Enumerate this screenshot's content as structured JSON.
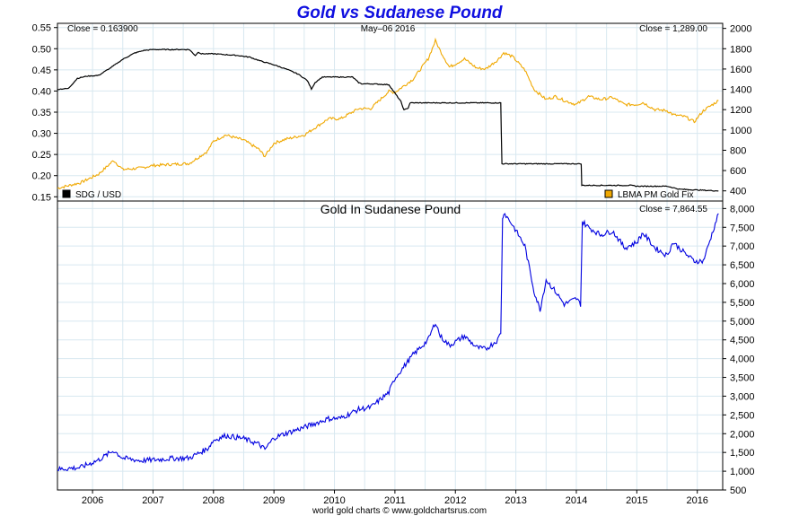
{
  "chart_data": [
    {
      "type": "line",
      "title": "Gold vs Sudanese Pound",
      "date_label": "May–06  2016",
      "left_close_label": "Close = 0.163900",
      "right_close_label": "Close = 1,289.00",
      "legend": [
        {
          "name": "SDG / USD",
          "color": "#000000",
          "position": "bottom-left"
        },
        {
          "name": "LBMA PM Gold Fix",
          "color": "#f0a800",
          "position": "bottom-right"
        }
      ],
      "y_left": {
        "min": 0.14,
        "max": 0.56,
        "ticks": [
          "0.55",
          "0.50",
          "0.45",
          "0.40",
          "0.35",
          "0.30",
          "0.25",
          "0.20",
          "0.15"
        ]
      },
      "y_right": {
        "min": 300,
        "max": 2050,
        "ticks": [
          "2000",
          "1800",
          "1600",
          "1400",
          "1200",
          "1000",
          "800",
          "600",
          "400"
        ]
      },
      "grid": true,
      "series": [
        {
          "name": "SDG / USD",
          "axis": "left",
          "color": "#000000",
          "x": [
            2005.42,
            2005.6,
            2005.75,
            2005.9,
            2006.1,
            2006.3,
            2006.5,
            2006.7,
            2006.85,
            2007.0,
            2007.3,
            2007.6,
            2007.7,
            2007.75,
            2007.8,
            2008.0,
            2008.2,
            2008.4,
            2008.6,
            2008.8,
            2009.0,
            2009.2,
            2009.4,
            2009.55,
            2009.62,
            2009.68,
            2009.8,
            2010.0,
            2010.3,
            2010.4,
            2010.45,
            2010.6,
            2010.9,
            2011.0,
            2011.1,
            2011.15,
            2011.22,
            2011.25,
            2011.6,
            2012.0,
            2012.4,
            2012.75,
            2012.77,
            2013.0,
            2013.5,
            2014.0,
            2014.08,
            2014.09,
            2014.5,
            2014.9,
            2015.0,
            2015.5,
            2015.7,
            2016.0,
            2016.35
          ],
          "values": [
            0.404,
            0.406,
            0.43,
            0.435,
            0.437,
            0.455,
            0.475,
            0.49,
            0.496,
            0.498,
            0.498,
            0.498,
            0.484,
            0.492,
            0.488,
            0.488,
            0.486,
            0.484,
            0.48,
            0.47,
            0.462,
            0.452,
            0.44,
            0.425,
            0.405,
            0.42,
            0.433,
            0.433,
            0.433,
            0.42,
            0.417,
            0.417,
            0.415,
            0.395,
            0.375,
            0.355,
            0.36,
            0.372,
            0.372,
            0.372,
            0.372,
            0.372,
            0.228,
            0.228,
            0.228,
            0.228,
            0.228,
            0.177,
            0.177,
            0.177,
            0.175,
            0.175,
            0.168,
            0.166,
            0.1639
          ]
        },
        {
          "name": "LBMA PM Gold Fix",
          "axis": "right",
          "color": "#f0a800",
          "x": [
            2005.42,
            2005.8,
            2006.1,
            2006.35,
            2006.5,
            2006.8,
            2007.0,
            2007.3,
            2007.6,
            2007.9,
            2008.0,
            2008.2,
            2008.5,
            2008.75,
            2008.85,
            2009.0,
            2009.2,
            2009.5,
            2009.9,
            2010.1,
            2010.4,
            2010.6,
            2010.9,
            2011.0,
            2011.3,
            2011.55,
            2011.67,
            2011.75,
            2011.9,
            2012.0,
            2012.15,
            2012.35,
            2012.5,
            2012.7,
            2012.8,
            2012.95,
            2013.15,
            2013.3,
            2013.5,
            2013.65,
            2013.8,
            2014.0,
            2014.2,
            2014.4,
            2014.6,
            2014.8,
            2015.0,
            2015.1,
            2015.3,
            2015.5,
            2015.6,
            2015.8,
            2015.95,
            2016.1,
            2016.35
          ],
          "values": [
            426,
            480,
            565,
            700,
            610,
            625,
            650,
            660,
            670,
            790,
            890,
            950,
            900,
            810,
            740,
            870,
            910,
            950,
            1110,
            1110,
            1210,
            1210,
            1380,
            1370,
            1500,
            1700,
            1880,
            1780,
            1620,
            1650,
            1700,
            1610,
            1600,
            1690,
            1760,
            1720,
            1590,
            1400,
            1300,
            1330,
            1290,
            1250,
            1330,
            1300,
            1320,
            1250,
            1250,
            1270,
            1200,
            1190,
            1150,
            1130,
            1080,
            1190,
            1289
          ]
        }
      ]
    },
    {
      "type": "line",
      "title": "Gold In Sudanese Pound",
      "close_label": "Close = 7,864.55",
      "y_right": {
        "min": 500,
        "max": 8200,
        "ticks": [
          "8,000",
          "7,500",
          "7,000",
          "6,500",
          "6,000",
          "5,500",
          "5,000",
          "4,500",
          "4,000",
          "3,500",
          "3,000",
          "2,500",
          "2,000",
          "1,500",
          "1,000",
          "500"
        ]
      },
      "x_axis": {
        "min": 2005.42,
        "max": 2016.42,
        "tick_labels": [
          "2006",
          "2007",
          "2008",
          "2009",
          "2010",
          "2011",
          "2012",
          "2013",
          "2014",
          "2015",
          "2016"
        ]
      },
      "grid": true,
      "footer": "world gold charts © www.goldchartsrus.com",
      "series": [
        {
          "name": "Gold In Sudanese Pound",
          "color": "#0000e0",
          "x": [
            2005.42,
            2005.8,
            2006.1,
            2006.35,
            2006.5,
            2006.8,
            2007.0,
            2007.3,
            2007.6,
            2007.9,
            2008.0,
            2008.2,
            2008.5,
            2008.75,
            2008.85,
            2009.0,
            2009.2,
            2009.5,
            2009.9,
            2010.1,
            2010.4,
            2010.6,
            2010.9,
            2011.0,
            2011.3,
            2011.55,
            2011.67,
            2011.75,
            2011.9,
            2012.0,
            2012.15,
            2012.35,
            2012.5,
            2012.7,
            2012.75,
            2012.78,
            2012.8,
            2012.95,
            2013.15,
            2013.3,
            2013.4,
            2013.5,
            2013.65,
            2013.8,
            2014.0,
            2014.07,
            2014.1,
            2014.2,
            2014.4,
            2014.6,
            2014.8,
            2015.0,
            2015.1,
            2015.3,
            2015.5,
            2015.6,
            2015.8,
            2015.95,
            2016.1,
            2016.35
          ],
          "values": [
            1050,
            1100,
            1300,
            1550,
            1350,
            1280,
            1300,
            1340,
            1350,
            1600,
            1820,
            1950,
            1870,
            1720,
            1580,
            1890,
            2010,
            2170,
            2400,
            2410,
            2650,
            2700,
            3100,
            3480,
            4100,
            4500,
            4980,
            4600,
            4350,
            4450,
            4600,
            4300,
            4250,
            4500,
            4700,
            7700,
            7900,
            7550,
            7000,
            5800,
            5300,
            6100,
            5800,
            5450,
            5600,
            5450,
            7650,
            7500,
            7300,
            7400,
            6950,
            7100,
            7350,
            6950,
            6750,
            7100,
            6800,
            6600,
            6600,
            7864.55
          ]
        }
      ]
    }
  ]
}
